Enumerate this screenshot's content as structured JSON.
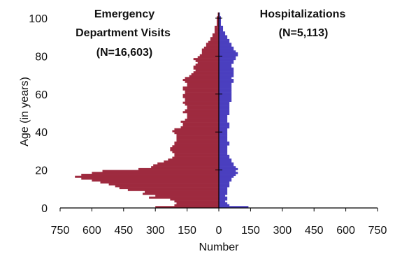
{
  "chart_data": {
    "type": "bar",
    "orientation": "horizontal-population-pyramid",
    "ylabel": "Age (in years)",
    "xlabel": "Number",
    "y_range": [
      0,
      103
    ],
    "y_ticks": [
      0,
      20,
      40,
      60,
      80,
      100
    ],
    "x_range": [
      -750,
      750
    ],
    "x_ticks": [
      -750,
      -600,
      -450,
      -300,
      -150,
      0,
      150,
      300,
      450,
      600,
      750
    ],
    "x_tick_labels": [
      "750",
      "600",
      "450",
      "300",
      "150",
      "0",
      "150",
      "300",
      "450",
      "600",
      "750"
    ],
    "left_panel_title": [
      "Emergency",
      "Department Visits",
      "(N=16,603)"
    ],
    "right_panel_title": [
      "Hospitalizations",
      "(N=5,113)"
    ],
    "colors": {
      "emergency": "#9e2a3f",
      "hospital": "#4a3fbf"
    },
    "ages": [
      0,
      1,
      2,
      3,
      4,
      5,
      6,
      7,
      8,
      9,
      10,
      11,
      12,
      13,
      14,
      15,
      16,
      17,
      18,
      19,
      20,
      21,
      22,
      23,
      24,
      25,
      26,
      27,
      28,
      29,
      30,
      31,
      32,
      33,
      34,
      35,
      36,
      37,
      38,
      39,
      40,
      41,
      42,
      43,
      44,
      45,
      46,
      47,
      48,
      49,
      50,
      51,
      52,
      53,
      54,
      55,
      56,
      57,
      58,
      59,
      60,
      61,
      62,
      63,
      64,
      65,
      66,
      67,
      68,
      69,
      70,
      71,
      72,
      73,
      74,
      75,
      76,
      77,
      78,
      79,
      80,
      81,
      82,
      83,
      84,
      85,
      86,
      87,
      88,
      89,
      90,
      91,
      92,
      93,
      94,
      95,
      96,
      97,
      98,
      99,
      100,
      101,
      102
    ],
    "series": [
      {
        "name": "Emergency Department Visits",
        "values": [
          300,
          210,
          200,
          210,
          230,
          330,
          300,
          360,
          350,
          430,
          470,
          490,
          520,
          560,
          600,
          650,
          680,
          650,
          600,
          550,
          380,
          320,
          310,
          290,
          260,
          240,
          220,
          210,
          210,
          220,
          230,
          230,
          220,
          210,
          210,
          200,
          200,
          200,
          200,
          210,
          220,
          210,
          180,
          170,
          170,
          180,
          160,
          150,
          150,
          150,
          170,
          160,
          150,
          150,
          160,
          170,
          160,
          160,
          170,
          170,
          160,
          160,
          170,
          170,
          150,
          150,
          160,
          170,
          160,
          140,
          130,
          120,
          110,
          120,
          120,
          110,
          100,
          110,
          120,
          100,
          90,
          80,
          80,
          80,
          70,
          60,
          60,
          50,
          40,
          40,
          30,
          30,
          20,
          20,
          20,
          20,
          10,
          10,
          10,
          10,
          10,
          5,
          5
        ]
      },
      {
        "name": "Hospitalizations",
        "values": [
          140,
          50,
          40,
          30,
          40,
          40,
          30,
          40,
          40,
          40,
          40,
          50,
          50,
          50,
          60,
          60,
          70,
          80,
          90,
          80,
          90,
          80,
          70,
          70,
          60,
          60,
          50,
          50,
          40,
          40,
          40,
          40,
          40,
          50,
          50,
          40,
          40,
          40,
          40,
          40,
          40,
          40,
          50,
          50,
          50,
          40,
          40,
          40,
          40,
          50,
          50,
          50,
          50,
          50,
          50,
          50,
          60,
          60,
          60,
          60,
          60,
          60,
          60,
          60,
          60,
          60,
          70,
          70,
          60,
          70,
          70,
          70,
          70,
          70,
          60,
          60,
          70,
          70,
          80,
          80,
          90,
          90,
          80,
          70,
          70,
          60,
          60,
          50,
          50,
          40,
          40,
          30,
          30,
          20,
          20,
          20,
          10,
          10,
          10,
          10,
          10,
          5,
          5
        ]
      }
    ]
  }
}
